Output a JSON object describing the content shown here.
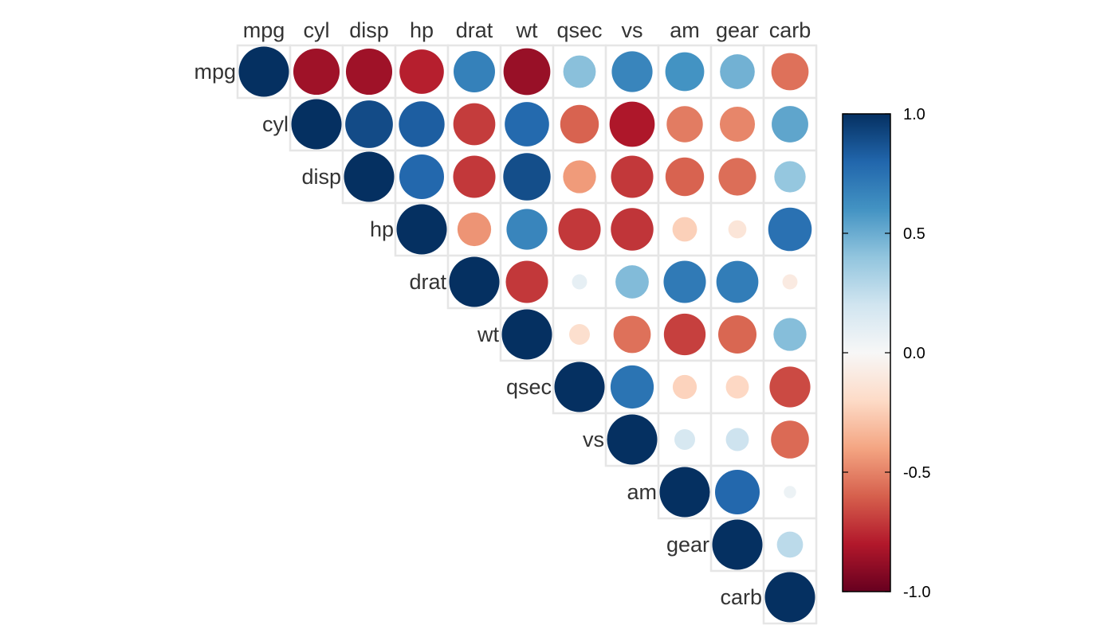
{
  "chart_data": {
    "type": "heatmap",
    "style": "correlation matrix, upper triangle, circle glyphs (area and colour encode coefficient)",
    "variables": [
      "mpg",
      "cyl",
      "disp",
      "hp",
      "drat",
      "wt",
      "qsec",
      "vs",
      "am",
      "gear",
      "carb"
    ],
    "matrix": [
      [
        1.0,
        -0.85,
        -0.85,
        -0.78,
        0.68,
        -0.87,
        0.42,
        0.66,
        0.6,
        0.48,
        -0.55
      ],
      [
        -0.85,
        1.0,
        0.9,
        0.83,
        -0.7,
        0.78,
        -0.59,
        -0.81,
        -0.52,
        -0.49,
        0.53
      ],
      [
        -0.85,
        0.9,
        1.0,
        0.79,
        -0.71,
        0.89,
        -0.43,
        -0.71,
        -0.59,
        -0.56,
        0.39
      ],
      [
        -0.78,
        0.83,
        0.79,
        1.0,
        -0.45,
        0.66,
        -0.71,
        -0.72,
        -0.24,
        -0.13,
        0.75
      ],
      [
        0.68,
        -0.7,
        -0.71,
        -0.45,
        1.0,
        -0.71,
        0.09,
        0.44,
        0.71,
        0.7,
        -0.09
      ],
      [
        -0.87,
        0.78,
        0.89,
        0.66,
        -0.71,
        1.0,
        -0.17,
        -0.55,
        -0.69,
        -0.58,
        0.43
      ],
      [
        0.42,
        -0.59,
        -0.43,
        -0.71,
        0.09,
        -0.17,
        1.0,
        0.74,
        -0.23,
        -0.21,
        -0.66
      ],
      [
        0.66,
        -0.81,
        -0.71,
        -0.72,
        0.44,
        -0.55,
        0.74,
        1.0,
        0.17,
        0.21,
        -0.57
      ],
      [
        0.6,
        -0.52,
        -0.59,
        -0.24,
        0.71,
        -0.69,
        -0.23,
        0.17,
        1.0,
        0.79,
        0.06
      ],
      [
        0.48,
        -0.49,
        -0.56,
        -0.13,
        0.7,
        -0.58,
        -0.21,
        0.21,
        0.79,
        1.0,
        0.27
      ],
      [
        -0.55,
        0.53,
        0.39,
        0.75,
        -0.09,
        0.43,
        -0.66,
        -0.57,
        0.06,
        0.27,
        1.0
      ]
    ],
    "color_scale": {
      "stops": [
        "#67001F",
        "#B2182B",
        "#D6604D",
        "#F4A582",
        "#FDDBC7",
        "#F7F7F7",
        "#D1E5F0",
        "#92C5DE",
        "#4393C3",
        "#2166AC",
        "#053061"
      ],
      "range": [
        -1.0,
        1.0
      ],
      "tick_labels": [
        "1.0",
        "0.5",
        "0.0",
        "-0.5",
        "-1.0"
      ],
      "tick_values": [
        1.0,
        0.5,
        0.0,
        -0.5,
        -1.0
      ]
    },
    "grid_color": "#e6e6e6",
    "legend_placement": "right"
  }
}
